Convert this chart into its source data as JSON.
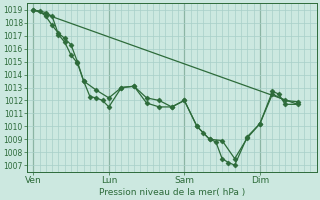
{
  "bg_color": "#cce8e0",
  "grid_color": "#a8cfc8",
  "line_color": "#2d6b3a",
  "marker_color": "#2d6b3a",
  "xlabel": "Pression niveau de la mer( hPa )",
  "ylim": [
    1006.5,
    1019.5
  ],
  "yticks": [
    1007,
    1008,
    1009,
    1010,
    1011,
    1012,
    1013,
    1014,
    1015,
    1016,
    1017,
    1018,
    1019
  ],
  "xtick_labels": [
    "Ven",
    "Lun",
    "Sam",
    "Dim"
  ],
  "xtick_positions": [
    0,
    72,
    144,
    216
  ],
  "xlim": [
    -6,
    270
  ],
  "vlines": [
    0,
    72,
    144,
    216
  ],
  "series1_x": [
    0,
    12,
    18,
    24,
    30,
    36,
    42,
    48,
    60,
    72,
    84,
    96,
    108,
    120,
    132,
    144,
    156,
    162,
    168,
    174,
    180,
    186,
    192,
    204,
    216,
    228,
    234,
    240,
    252
  ],
  "series1_y": [
    1019.0,
    1018.8,
    1018.5,
    1017.1,
    1016.5,
    1015.5,
    1014.9,
    1013.5,
    1012.8,
    1012.2,
    1013.0,
    1013.1,
    1012.2,
    1012.0,
    1011.5,
    1012.0,
    1010.0,
    1009.5,
    1009.0,
    1008.8,
    1007.5,
    1007.2,
    1007.0,
    1009.2,
    1010.2,
    1012.7,
    1012.5,
    1011.7,
    1011.7
  ],
  "series2_x": [
    0,
    6,
    12,
    18,
    24,
    30,
    36,
    42,
    48,
    54,
    60,
    66,
    72,
    84,
    96,
    108,
    120,
    132,
    144,
    156,
    168,
    180,
    192,
    204,
    216,
    228,
    240,
    252
  ],
  "series2_y": [
    1019.0,
    1018.9,
    1018.5,
    1017.8,
    1017.2,
    1016.8,
    1016.3,
    1015.0,
    1013.5,
    1012.3,
    1012.2,
    1012.0,
    1011.5,
    1013.0,
    1013.1,
    1011.8,
    1011.5,
    1011.5,
    1012.0,
    1010.0,
    1009.0,
    1008.9,
    1007.5,
    1009.1,
    1010.2,
    1012.5,
    1012.0,
    1011.9
  ],
  "trend_x": [
    0,
    252
  ],
  "trend_y": [
    1019.0,
    1011.7
  ]
}
